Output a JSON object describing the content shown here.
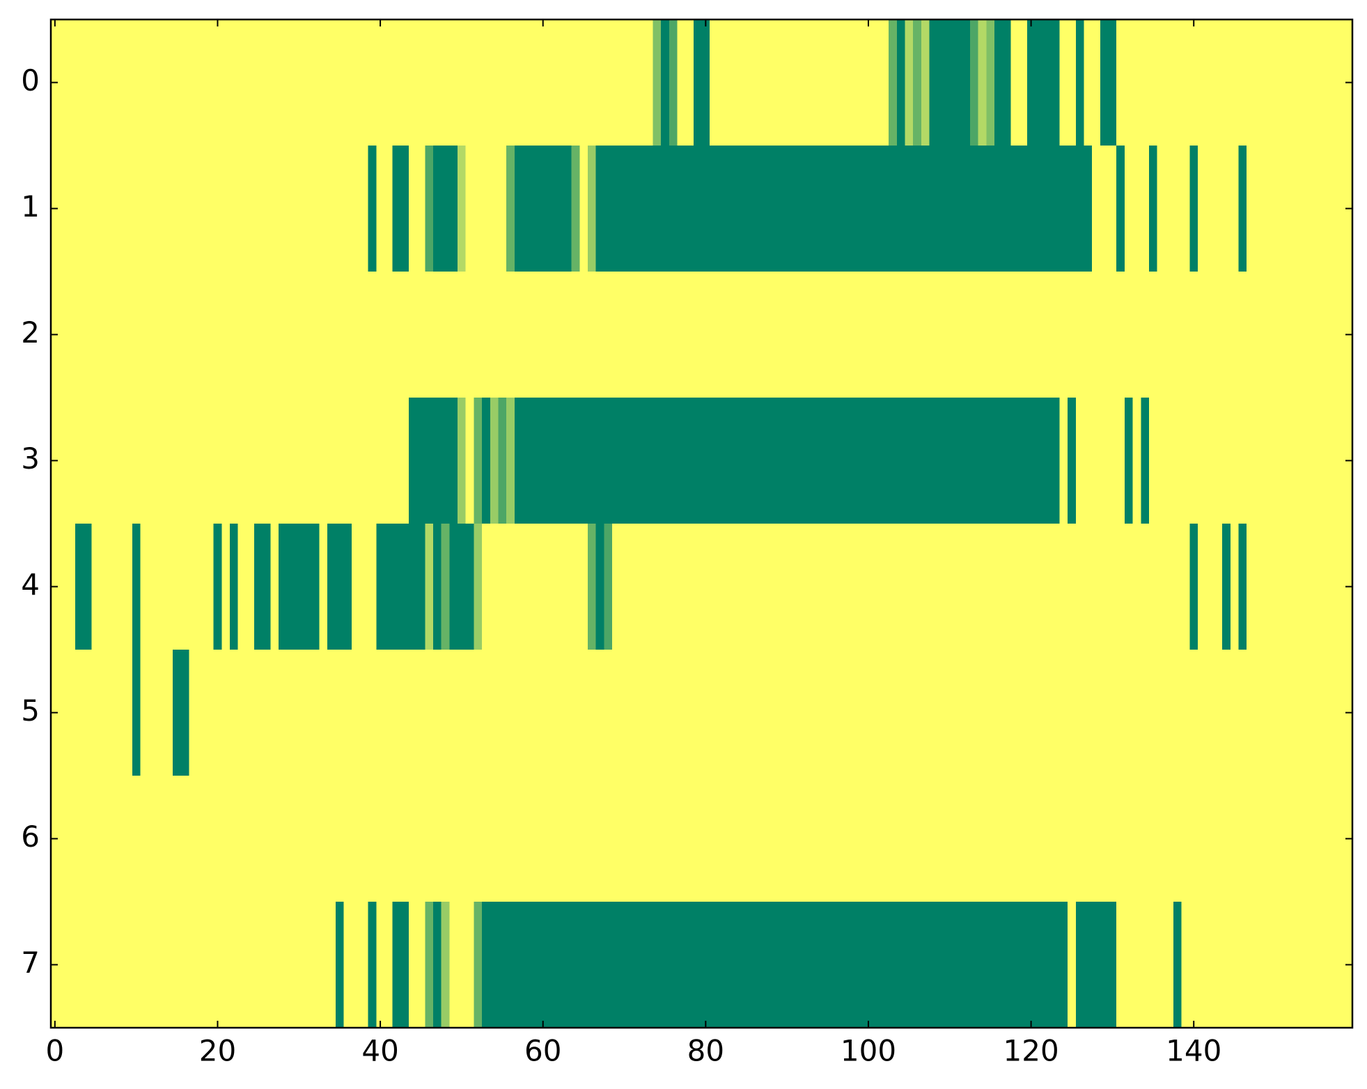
{
  "chart_data": {
    "type": "heatmap",
    "xlim": [
      -0.5,
      159.5
    ],
    "ylim": [
      7.5,
      -0.5
    ],
    "xticks": [
      0,
      20,
      40,
      60,
      80,
      100,
      120,
      140
    ],
    "yticks": [
      0,
      1,
      2,
      3,
      4,
      5,
      6,
      7
    ],
    "vlim": [
      0,
      1
    ],
    "colors": [
      "#ffff66",
      "#008066"
    ],
    "z": [
      [
        0,
        0,
        0,
        0,
        0,
        0,
        0,
        0,
        0,
        0,
        0,
        0,
        0,
        0,
        0,
        0,
        0,
        0,
        0,
        0,
        0,
        0,
        0,
        0,
        0,
        0,
        0,
        0,
        0,
        0,
        0,
        0,
        0,
        0,
        0,
        0,
        0,
        0,
        0,
        0,
        0,
        0,
        0,
        0,
        0,
        0,
        0,
        0,
        0,
        0,
        0,
        0,
        0,
        0,
        0,
        0,
        0,
        0,
        0,
        0,
        0,
        0,
        0,
        0,
        0,
        0,
        0,
        0,
        0,
        0,
        0,
        0,
        0,
        0,
        0.5,
        1,
        0.7,
        0,
        0,
        1,
        1,
        0,
        0,
        0,
        0,
        0,
        0,
        0,
        0,
        0,
        0,
        0,
        0,
        0,
        0,
        0,
        0,
        0,
        0,
        0,
        0,
        0,
        0,
        0.6,
        1,
        0.3,
        0.6,
        0.3,
        1,
        1,
        1,
        1,
        1,
        0.7,
        0.3,
        0.5,
        1,
        1,
        0,
        0,
        1,
        1,
        1,
        1,
        0,
        0,
        1,
        0,
        0,
        1,
        1,
        0,
        0,
        0,
        0,
        0,
        0,
        0,
        0,
        0,
        0,
        0,
        0,
        0,
        0,
        0,
        0,
        0,
        0,
        0,
        0,
        0,
        0,
        0,
        0,
        0,
        0,
        0,
        0,
        0
      ],
      [
        0,
        0,
        0,
        0,
        0,
        0,
        0,
        0,
        0,
        0,
        0,
        0,
        0,
        0,
        0,
        0,
        0,
        0,
        0,
        0,
        0,
        0,
        0,
        0,
        0,
        0,
        0,
        0,
        0,
        0,
        0,
        0,
        0,
        0,
        0,
        0,
        0,
        0,
        0,
        1,
        0,
        0,
        1,
        1,
        0,
        0,
        0.7,
        1,
        1,
        1,
        0.3,
        0,
        0,
        0,
        0,
        0,
        0.6,
        1,
        1,
        1,
        1,
        1,
        1,
        1,
        0.6,
        0,
        0.4,
        1,
        1,
        1,
        1,
        1,
        1,
        1,
        1,
        1,
        1,
        1,
        1,
        1,
        1,
        1,
        1,
        1,
        1,
        1,
        1,
        1,
        1,
        1,
        1,
        1,
        1,
        1,
        1,
        1,
        1,
        1,
        1,
        1,
        1,
        1,
        1,
        1,
        1,
        1,
        1,
        1,
        1,
        1,
        1,
        1,
        1,
        1,
        1,
        1,
        1,
        1,
        1,
        1,
        1,
        1,
        1,
        1,
        1,
        1,
        1,
        1,
        0,
        0,
        0,
        1,
        0,
        0,
        0,
        1,
        0,
        0,
        0,
        0,
        1,
        0,
        0,
        0,
        0,
        0,
        1,
        0,
        0,
        0,
        0,
        0,
        0,
        0,
        0,
        0,
        0,
        0,
        0,
        0
      ],
      [
        0,
        0,
        0,
        0,
        0,
        0,
        0,
        0,
        0,
        0,
        0,
        0,
        0,
        0,
        0,
        0,
        0,
        0,
        0,
        0,
        0,
        0,
        0,
        0,
        0,
        0,
        0,
        0,
        0,
        0,
        0,
        0,
        0,
        0,
        0,
        0,
        0,
        0,
        0,
        0,
        0,
        0,
        0,
        0,
        0,
        0,
        0,
        0,
        0,
        0,
        0,
        0,
        0,
        0,
        0,
        0,
        0,
        0,
        0,
        0,
        0,
        0,
        0,
        0,
        0,
        0,
        0,
        0,
        0,
        0,
        0,
        0,
        0,
        0,
        0,
        0,
        0,
        0,
        0,
        0,
        0,
        0,
        0,
        0,
        0,
        0,
        0,
        0,
        0,
        0,
        0,
        0,
        0,
        0,
        0,
        0,
        0,
        0,
        0,
        0,
        0,
        0,
        0,
        0,
        0,
        0,
        0,
        0,
        0,
        0,
        0,
        0,
        0,
        0,
        0,
        0,
        0,
        0,
        0,
        0,
        0,
        0,
        0,
        0,
        0,
        0,
        0,
        0,
        0,
        0,
        0,
        0,
        0,
        0,
        0,
        0,
        0,
        0,
        0,
        0,
        0,
        0,
        0,
        0,
        0,
        0,
        0,
        0,
        0,
        0,
        0,
        0,
        0,
        0,
        0,
        0,
        0,
        0,
        0,
        0
      ],
      [
        0,
        0,
        0,
        0,
        0,
        0,
        0,
        0,
        0,
        0,
        0,
        0,
        0,
        0,
        0,
        0,
        0,
        0,
        0,
        0,
        0,
        0,
        0,
        0,
        0,
        0,
        0,
        0,
        0,
        0,
        0,
        0,
        0,
        0,
        0,
        0,
        0,
        0,
        0,
        0,
        0,
        0,
        0,
        0,
        1,
        1,
        1,
        1,
        1,
        1,
        0.4,
        0,
        0.6,
        1,
        0.4,
        0.7,
        0.4,
        1,
        1,
        1,
        1,
        1,
        1,
        1,
        1,
        1,
        1,
        1,
        1,
        1,
        1,
        1,
        1,
        1,
        1,
        1,
        1,
        1,
        1,
        1,
        1,
        1,
        1,
        1,
        1,
        1,
        1,
        1,
        1,
        1,
        1,
        1,
        1,
        1,
        1,
        1,
        1,
        1,
        1,
        1,
        1,
        1,
        1,
        1,
        1,
        1,
        1,
        1,
        1,
        1,
        1,
        1,
        1,
        1,
        1,
        1,
        1,
        1,
        1,
        1,
        1,
        1,
        1,
        1,
        0,
        1,
        0,
        0,
        0,
        0,
        0,
        0,
        1,
        0,
        1,
        0,
        0,
        0,
        0,
        0,
        0,
        0,
        0,
        0,
        0,
        0,
        0,
        0,
        0,
        0,
        0,
        0,
        0,
        0,
        0,
        0,
        0,
        0,
        0,
        0
      ],
      [
        0,
        0,
        0,
        1,
        1,
        0,
        0,
        0,
        0,
        0,
        1,
        0,
        0,
        0,
        0,
        0,
        0,
        0,
        0,
        0,
        1,
        0,
        1,
        0,
        0,
        1,
        1,
        0,
        1,
        1,
        1,
        1,
        1,
        0,
        1,
        1,
        1,
        0,
        0,
        0,
        1,
        1,
        1,
        1,
        1,
        1,
        0.3,
        1,
        0.6,
        1,
        1,
        1,
        0.4,
        0,
        0,
        0,
        0,
        0,
        0,
        0,
        0,
        0,
        0,
        0,
        0,
        0,
        0.6,
        1,
        0.7,
        0,
        0,
        0,
        0,
        0,
        0,
        0,
        0,
        0,
        0,
        0,
        0,
        0,
        0,
        0,
        0,
        0,
        0,
        0,
        0,
        0,
        0,
        0,
        0,
        0,
        0,
        0,
        0,
        0,
        0,
        0,
        0,
        0,
        0,
        0,
        0,
        0,
        0,
        0,
        0,
        0,
        0,
        0,
        0,
        0,
        0,
        0,
        0,
        0,
        0,
        0,
        0,
        0,
        0,
        0,
        0,
        0,
        0,
        0,
        0,
        0,
        0,
        0,
        0,
        0,
        0,
        0,
        0,
        0,
        0,
        0,
        1,
        0,
        0,
        0,
        1,
        0,
        1,
        0,
        0,
        0,
        0,
        0,
        0,
        0,
        0,
        0,
        0,
        0,
        0,
        0
      ],
      [
        0,
        0,
        0,
        0,
        0,
        0,
        0,
        0,
        0,
        0,
        1,
        0,
        0,
        0,
        0,
        1,
        1,
        0,
        0,
        0,
        0,
        0,
        0,
        0,
        0,
        0,
        0,
        0,
        0,
        0,
        0,
        0,
        0,
        0,
        0,
        0,
        0,
        0,
        0,
        0,
        0,
        0,
        0,
        0,
        0,
        0,
        0,
        0,
        0,
        0,
        0,
        0,
        0,
        0,
        0,
        0,
        0,
        0,
        0,
        0,
        0,
        0,
        0,
        0,
        0,
        0,
        0,
        0,
        0,
        0,
        0,
        0,
        0,
        0,
        0,
        0,
        0,
        0,
        0,
        0,
        0,
        0,
        0,
        0,
        0,
        0,
        0,
        0,
        0,
        0,
        0,
        0,
        0,
        0,
        0,
        0,
        0,
        0,
        0,
        0,
        0,
        0,
        0,
        0,
        0,
        0,
        0,
        0,
        0,
        0,
        0,
        0,
        0,
        0,
        0,
        0,
        0,
        0,
        0,
        0,
        0,
        0,
        0,
        0,
        0,
        0,
        0,
        0,
        0,
        0,
        0,
        0,
        0,
        0,
        0,
        0,
        0,
        0,
        0,
        0,
        0,
        0,
        0,
        0,
        0,
        0,
        0,
        0,
        0,
        0,
        0,
        0,
        0,
        0,
        0,
        0,
        0,
        0,
        0,
        0
      ],
      [
        0,
        0,
        0,
        0,
        0,
        0,
        0,
        0,
        0,
        0,
        0,
        0,
        0,
        0,
        0,
        0,
        0,
        0,
        0,
        0,
        0,
        0,
        0,
        0,
        0,
        0,
        0,
        0,
        0,
        0,
        0,
        0,
        0,
        0,
        0,
        0,
        0,
        0,
        0,
        0,
        0,
        0,
        0,
        0,
        0,
        0,
        0,
        0,
        0,
        0,
        0,
        0,
        0,
        0,
        0,
        0,
        0,
        0,
        0,
        0,
        0,
        0,
        0,
        0,
        0,
        0,
        0,
        0,
        0,
        0,
        0,
        0,
        0,
        0,
        0,
        0,
        0,
        0,
        0,
        0,
        0,
        0,
        0,
        0,
        0,
        0,
        0,
        0,
        0,
        0,
        0,
        0,
        0,
        0,
        0,
        0,
        0,
        0,
        0,
        0,
        0,
        0,
        0,
        0,
        0,
        0,
        0,
        0,
        0,
        0,
        0,
        0,
        0,
        0,
        0,
        0,
        0,
        0,
        0,
        0,
        0,
        0,
        0,
        0,
        0,
        0,
        0,
        0,
        0,
        0,
        0,
        0,
        0,
        0,
        0,
        0,
        0,
        0,
        0,
        0,
        0,
        0,
        0,
        0,
        0,
        0,
        0,
        0,
        0,
        0,
        0,
        0,
        0,
        0,
        0,
        0,
        0,
        0,
        0,
        0
      ],
      [
        0,
        0,
        0,
        0,
        0,
        0,
        0,
        0,
        0,
        0,
        0,
        0,
        0,
        0,
        0,
        0,
        0,
        0,
        0,
        0,
        0,
        0,
        0,
        0,
        0,
        0,
        0,
        0,
        0,
        0,
        0,
        0,
        0,
        0,
        0,
        1,
        0,
        0,
        0,
        1,
        0,
        0,
        1,
        1,
        0,
        0,
        0.6,
        1,
        0.4,
        0,
        0,
        0,
        0.6,
        1,
        1,
        1,
        1,
        1,
        1,
        1,
        1,
        1,
        1,
        1,
        1,
        1,
        1,
        1,
        1,
        1,
        1,
        1,
        1,
        1,
        1,
        1,
        1,
        1,
        1,
        1,
        1,
        1,
        1,
        1,
        1,
        1,
        1,
        1,
        1,
        1,
        1,
        1,
        1,
        1,
        1,
        1,
        1,
        1,
        1,
        1,
        1,
        1,
        1,
        1,
        1,
        1,
        1,
        1,
        1,
        1,
        1,
        1,
        1,
        1,
        1,
        1,
        1,
        1,
        1,
        1,
        1,
        1,
        1,
        1,
        1,
        0,
        1,
        1,
        1,
        1,
        1,
        0,
        0,
        0,
        0,
        0,
        0,
        0,
        1,
        0,
        0,
        0,
        0,
        0,
        0,
        0,
        0,
        0,
        0,
        0,
        0,
        0,
        0,
        0,
        0,
        0,
        0,
        0,
        0,
        0
      ]
    ]
  }
}
